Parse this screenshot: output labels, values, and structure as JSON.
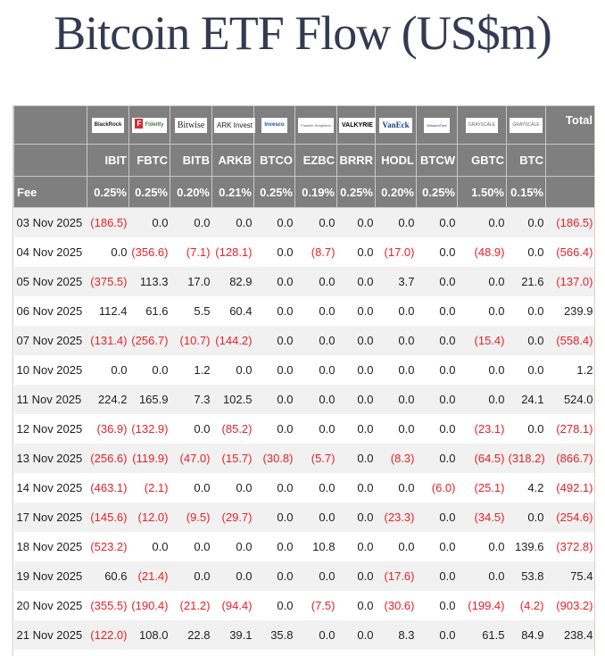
{
  "page": {
    "title": "Bitcoin ETF Flow (US$m)"
  },
  "table": {
    "issuers": [
      "BlackRock",
      "Fidelity",
      "Bitwise",
      "ARK Invest",
      "Invesco",
      "Franklin Templeton",
      "VALKYRIE",
      "VanEck",
      "WisdomTree",
      "GRAYSCALE",
      "GRAYSCALE"
    ],
    "total_header": "Total",
    "tickers": [
      "IBIT",
      "FBTC",
      "BITB",
      "ARKB",
      "BTCO",
      "EZBC",
      "BRRR",
      "HODL",
      "BTCW",
      "GBTC",
      "BTC"
    ],
    "fee_label": "Fee",
    "fees": [
      "0.25%",
      "0.25%",
      "0.20%",
      "0.21%",
      "0.25%",
      "0.19%",
      "0.25%",
      "0.20%",
      "0.25%",
      "1.50%",
      "0.15%"
    ],
    "rows": [
      {
        "date": "03 Nov 2025",
        "values": [
          "(186.5)",
          "0.0",
          "0.0",
          "0.0",
          "0.0",
          "0.0",
          "0.0",
          "0.0",
          "0.0",
          "0.0",
          "0.0"
        ],
        "total": "(186.5)"
      },
      {
        "date": "04 Nov 2025",
        "values": [
          "0.0",
          "(356.6)",
          "(7.1)",
          "(128.1)",
          "0.0",
          "(8.7)",
          "0.0",
          "(17.0)",
          "0.0",
          "(48.9)",
          "0.0"
        ],
        "total": "(566.4)"
      },
      {
        "date": "05 Nov 2025",
        "values": [
          "(375.5)",
          "113.3",
          "17.0",
          "82.9",
          "0.0",
          "0.0",
          "0.0",
          "3.7",
          "0.0",
          "0.0",
          "21.6"
        ],
        "total": "(137.0)"
      },
      {
        "date": "06 Nov 2025",
        "values": [
          "112.4",
          "61.6",
          "5.5",
          "60.4",
          "0.0",
          "0.0",
          "0.0",
          "0.0",
          "0.0",
          "0.0",
          "0.0"
        ],
        "total": "239.9"
      },
      {
        "date": "07 Nov 2025",
        "values": [
          "(131.4)",
          "(256.7)",
          "(10.7)",
          "(144.2)",
          "0.0",
          "0.0",
          "0.0",
          "0.0",
          "0.0",
          "(15.4)",
          "0.0"
        ],
        "total": "(558.4)"
      },
      {
        "date": "10 Nov 2025",
        "values": [
          "0.0",
          "0.0",
          "1.2",
          "0.0",
          "0.0",
          "0.0",
          "0.0",
          "0.0",
          "0.0",
          "0.0",
          "0.0"
        ],
        "total": "1.2"
      },
      {
        "date": "11 Nov 2025",
        "values": [
          "224.2",
          "165.9",
          "7.3",
          "102.5",
          "0.0",
          "0.0",
          "0.0",
          "0.0",
          "0.0",
          "0.0",
          "24.1"
        ],
        "total": "524.0"
      },
      {
        "date": "12 Nov 2025",
        "values": [
          "(36.9)",
          "(132.9)",
          "0.0",
          "(85.2)",
          "0.0",
          "0.0",
          "0.0",
          "0.0",
          "0.0",
          "(23.1)",
          "0.0"
        ],
        "total": "(278.1)"
      },
      {
        "date": "13 Nov 2025",
        "values": [
          "(256.6)",
          "(119.9)",
          "(47.0)",
          "(15.7)",
          "(30.8)",
          "(5.7)",
          "0.0",
          "(8.3)",
          "0.0",
          "(64.5)",
          "(318.2)"
        ],
        "total": "(866.7)"
      },
      {
        "date": "14 Nov 2025",
        "values": [
          "(463.1)",
          "(2.1)",
          "0.0",
          "0.0",
          "0.0",
          "0.0",
          "0.0",
          "0.0",
          "(6.0)",
          "(25.1)",
          "4.2"
        ],
        "total": "(492.1)"
      },
      {
        "date": "17 Nov 2025",
        "values": [
          "(145.6)",
          "(12.0)",
          "(9.5)",
          "(29.7)",
          "0.0",
          "0.0",
          "0.0",
          "(23.3)",
          "0.0",
          "(34.5)",
          "0.0"
        ],
        "total": "(254.6)"
      },
      {
        "date": "18 Nov 2025",
        "values": [
          "(523.2)",
          "0.0",
          "0.0",
          "0.0",
          "0.0",
          "10.8",
          "0.0",
          "0.0",
          "0.0",
          "0.0",
          "139.6"
        ],
        "total": "(372.8)"
      },
      {
        "date": "19 Nov 2025",
        "values": [
          "60.6",
          "(21.4)",
          "0.0",
          "0.0",
          "0.0",
          "0.0",
          "0.0",
          "(17.6)",
          "0.0",
          "0.0",
          "53.8"
        ],
        "total": "75.4"
      },
      {
        "date": "20 Nov 2025",
        "values": [
          "(355.5)",
          "(190.4)",
          "(21.2)",
          "(94.4)",
          "0.0",
          "(7.5)",
          "0.0",
          "(30.6)",
          "0.0",
          "(199.4)",
          "(4.2)"
        ],
        "total": "(903.2)"
      },
      {
        "date": "21 Nov 2025",
        "values": [
          "(122.0)",
          "108.0",
          "22.8",
          "39.1",
          "35.8",
          "0.0",
          "0.0",
          "8.3",
          "0.0",
          "61.5",
          "84.9"
        ],
        "total": "238.4"
      }
    ]
  },
  "colors": {
    "header_bg": "#7f7f7f",
    "negative": "#e8202a",
    "title": "#343a52",
    "row_alt": "#f1f1f1"
  }
}
